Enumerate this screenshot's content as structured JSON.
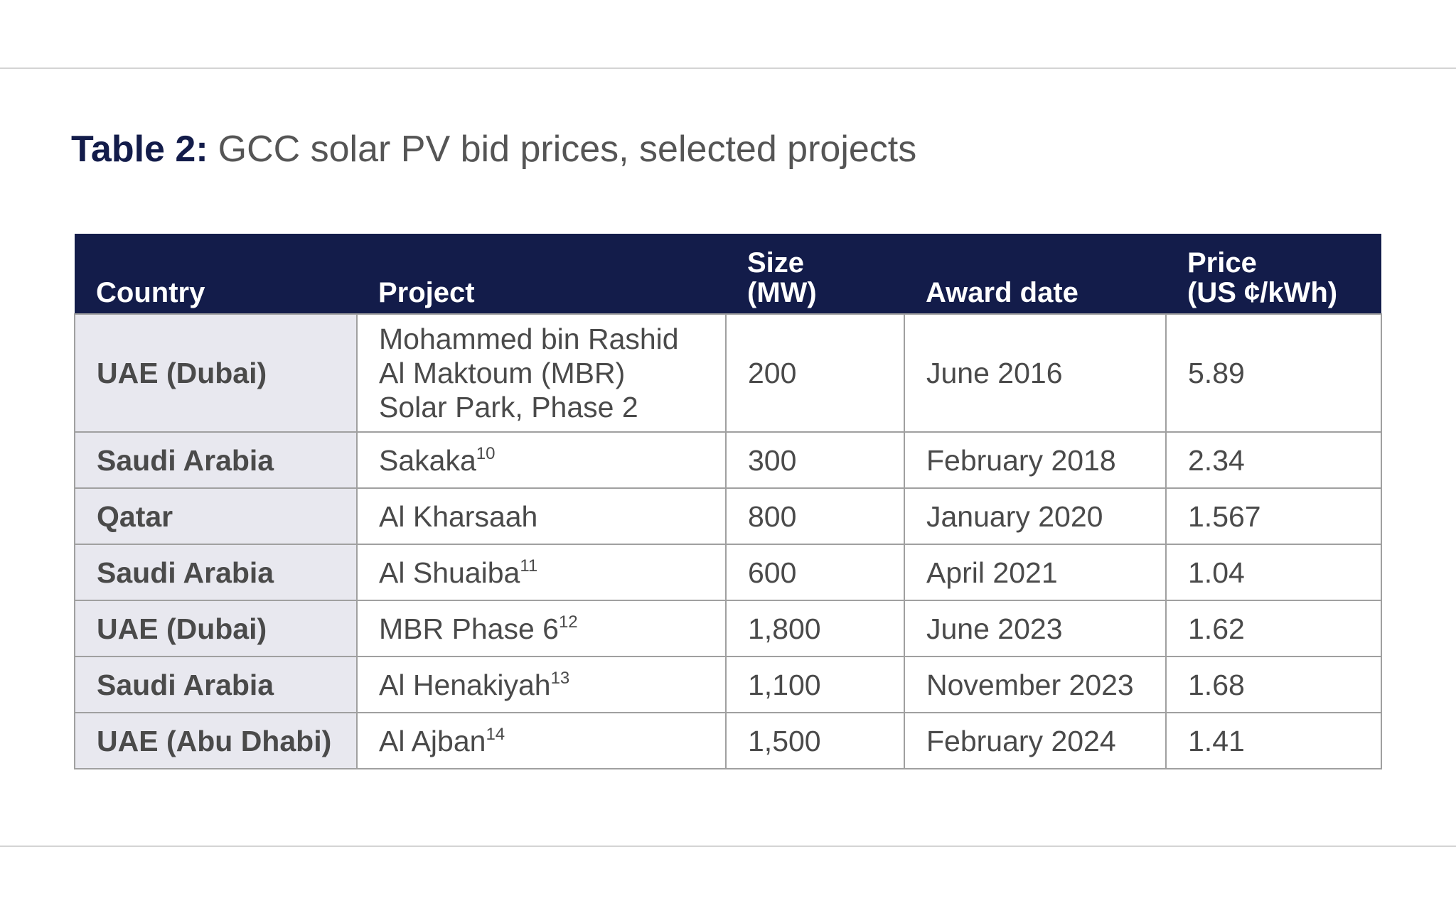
{
  "title": {
    "label": "Table 2:",
    "text": "GCC solar PV bid prices, selected projects"
  },
  "table": {
    "headers": [
      [
        "Country"
      ],
      [
        "Project"
      ],
      [
        "Size",
        "(MW)"
      ],
      [
        "Award date"
      ],
      [
        "Price",
        "(US ¢/kWh)"
      ]
    ],
    "rows": [
      {
        "country": "UAE (Dubai)",
        "project": {
          "lines": [
            "Mohammed bin Rashid",
            "Al Maktoum (MBR)",
            "Solar Park, Phase 2"
          ]
        },
        "size": "200",
        "award_date": "June 2016",
        "price": "5.89"
      },
      {
        "country": "Saudi Arabia",
        "project": {
          "lines": [
            "Sakaka"
          ],
          "note": "10"
        },
        "size": "300",
        "award_date": "February 2018",
        "price": "2.34"
      },
      {
        "country": "Qatar",
        "project": {
          "lines": [
            "Al Kharsaah"
          ]
        },
        "size": "800",
        "award_date": "January 2020",
        "price": "1.567"
      },
      {
        "country": "Saudi Arabia",
        "project": {
          "lines": [
            "Al Shuaiba"
          ],
          "note": "11"
        },
        "size": "600",
        "award_date": "April 2021",
        "price": "1.04"
      },
      {
        "country": "UAE (Dubai)",
        "project": {
          "lines": [
            "MBR Phase 6"
          ],
          "note": "12"
        },
        "size": "1,800",
        "award_date": "June 2023",
        "price": "1.62"
      },
      {
        "country": "Saudi Arabia",
        "project": {
          "lines": [
            "Al Henakiyah"
          ],
          "note": "13"
        },
        "size": "1,100",
        "award_date": "November 2023",
        "price": "1.68"
      },
      {
        "country": "UAE (Abu Dhabi)",
        "project": {
          "lines": [
            "Al Ajban"
          ],
          "note": "14"
        },
        "size": "1,500",
        "award_date": "February 2024",
        "price": "1.41"
      }
    ]
  }
}
